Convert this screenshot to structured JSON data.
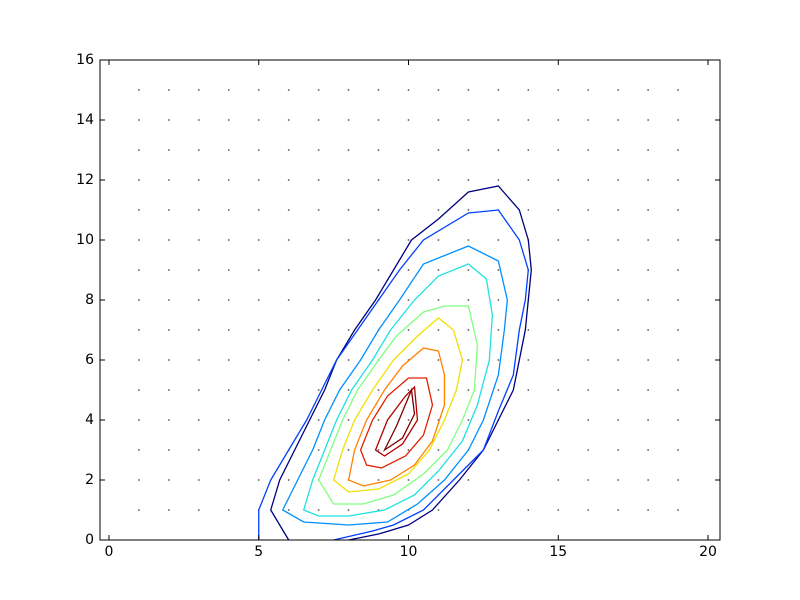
{
  "chart_data": {
    "type": "contour",
    "xlim": [
      -0.3,
      20.4
    ],
    "ylim": [
      0,
      16
    ],
    "xticks": [
      0,
      5,
      10,
      15,
      20
    ],
    "yticks": [
      0,
      2,
      4,
      6,
      8,
      10,
      12,
      14,
      16
    ],
    "dots": {
      "color": "#555555",
      "x": [
        1,
        2,
        3,
        4,
        5,
        6,
        7,
        8,
        9,
        10,
        11,
        12,
        13,
        14,
        15,
        16,
        17,
        18,
        19
      ],
      "y": [
        1,
        2,
        3,
        4,
        5,
        6,
        7,
        8,
        9,
        10,
        11,
        12,
        13,
        14,
        15
      ]
    },
    "series": [
      {
        "color": "#00007f",
        "closed": false,
        "x": [
          6,
          5.4,
          5.7,
          6.2,
          6.7,
          7.2,
          7.6,
          8.2,
          8.9,
          9.5,
          10.1,
          11,
          12,
          13,
          13.7,
          14,
          14.1,
          14,
          13.9,
          13.7,
          13.5,
          13,
          12.5,
          11.7,
          10.8,
          10,
          9,
          8
        ],
        "y": [
          0,
          1,
          2,
          3,
          4,
          5,
          6,
          7,
          8,
          9,
          10,
          10.7,
          11.6,
          11.8,
          11,
          10,
          9,
          8,
          7,
          6,
          5,
          4,
          3,
          2,
          1,
          0.5,
          0.2,
          0
        ]
      },
      {
        "color": "#0040ff",
        "closed": false,
        "x": [
          5,
          5,
          5.4,
          6,
          6.6,
          7.1,
          7.6,
          8.3,
          9,
          9.7,
          10.5,
          12,
          13,
          13.7,
          14,
          13.9,
          13.7,
          13.5,
          13,
          12.5,
          11.5,
          10.5,
          9.5,
          8.8,
          7.5
        ],
        "y": [
          0,
          1,
          2,
          3,
          4,
          5,
          6,
          7,
          8,
          9,
          10,
          10.9,
          11,
          10,
          9,
          8,
          7,
          5.5,
          4.3,
          3,
          2,
          1,
          0.5,
          0.3,
          0
        ]
      },
      {
        "color": "#0090ff",
        "closed": true,
        "x": [
          5.8,
          6.3,
          6.8,
          7.2,
          7.7,
          8.4,
          9,
          9.7,
          10.5,
          12,
          13,
          13.3,
          13.2,
          13,
          12.5,
          12,
          11.2,
          10.3,
          9.3,
          8,
          6.5
        ],
        "y": [
          1,
          2,
          3,
          4,
          5,
          6,
          7,
          8,
          9.2,
          9.8,
          9.3,
          8,
          7,
          5.5,
          4,
          3,
          2,
          1.2,
          0.6,
          0.5,
          0.6
        ]
      },
      {
        "color": "#20e0e0",
        "closed": true,
        "x": [
          6.5,
          6.8,
          7.2,
          7.6,
          8.1,
          8.8,
          9.4,
          10.2,
          11,
          12,
          12.6,
          12.8,
          12.7,
          12.3,
          11.8,
          11,
          10.2,
          9.2,
          8,
          7
        ],
        "y": [
          1,
          2,
          3,
          4,
          5,
          6,
          7,
          8,
          8.8,
          9.2,
          8.7,
          7.5,
          6,
          4.5,
          3.3,
          2.3,
          1.5,
          1,
          0.8,
          0.8
        ]
      },
      {
        "color": "#80ff80",
        "closed": true,
        "x": [
          7,
          7.4,
          7.8,
          8.3,
          9,
          9.6,
          10.5,
          11.2,
          12,
          12.3,
          12.2,
          11.8,
          11.3,
          10.5,
          9.5,
          8.5,
          7.5
        ],
        "y": [
          2,
          3,
          4,
          5,
          6,
          6.8,
          7.6,
          7.8,
          7.8,
          6.5,
          5,
          4,
          3,
          2.2,
          1.5,
          1.2,
          1.2
        ]
      },
      {
        "color": "#f0e000",
        "closed": true,
        "x": [
          7.5,
          7.8,
          8.2,
          8.8,
          9.5,
          10.3,
          11,
          11.5,
          11.8,
          11.6,
          11.2,
          10.7,
          10,
          9,
          8
        ],
        "y": [
          2,
          3,
          4,
          5,
          6,
          6.8,
          7.4,
          7,
          6,
          5,
          4,
          3,
          2.2,
          1.7,
          1.6
        ]
      },
      {
        "color": "#ff8000",
        "closed": true,
        "x": [
          8,
          8.2,
          8.6,
          9.2,
          9.8,
          10.5,
          11,
          11.2,
          11.2,
          10.8,
          10.2,
          9.4,
          8.5
        ],
        "y": [
          2,
          3,
          4,
          5,
          5.8,
          6.4,
          6.3,
          5.5,
          4.5,
          3.3,
          2.5,
          2,
          1.8
        ]
      },
      {
        "color": "#e02000",
        "closed": true,
        "x": [
          8.4,
          8.8,
          9.3,
          10,
          10.6,
          10.8,
          10.5,
          9.9,
          9.1,
          8.6
        ],
        "y": [
          3,
          4,
          4.8,
          5.4,
          5.4,
          4.5,
          3.5,
          2.8,
          2.4,
          2.5
        ]
      },
      {
        "color": "#b00000",
        "closed": true,
        "x": [
          8.9,
          9.3,
          9.9,
          10.2,
          10.3,
          9.8,
          9.2
        ],
        "y": [
          3,
          4,
          4.8,
          5.1,
          4,
          3.2,
          2.8
        ]
      },
      {
        "color": "#7f0000",
        "closed": true,
        "x": [
          9.2,
          9.6,
          10.1,
          10.2,
          9.8
        ],
        "y": [
          3,
          3.8,
          5,
          4.2,
          3.4
        ]
      }
    ]
  }
}
